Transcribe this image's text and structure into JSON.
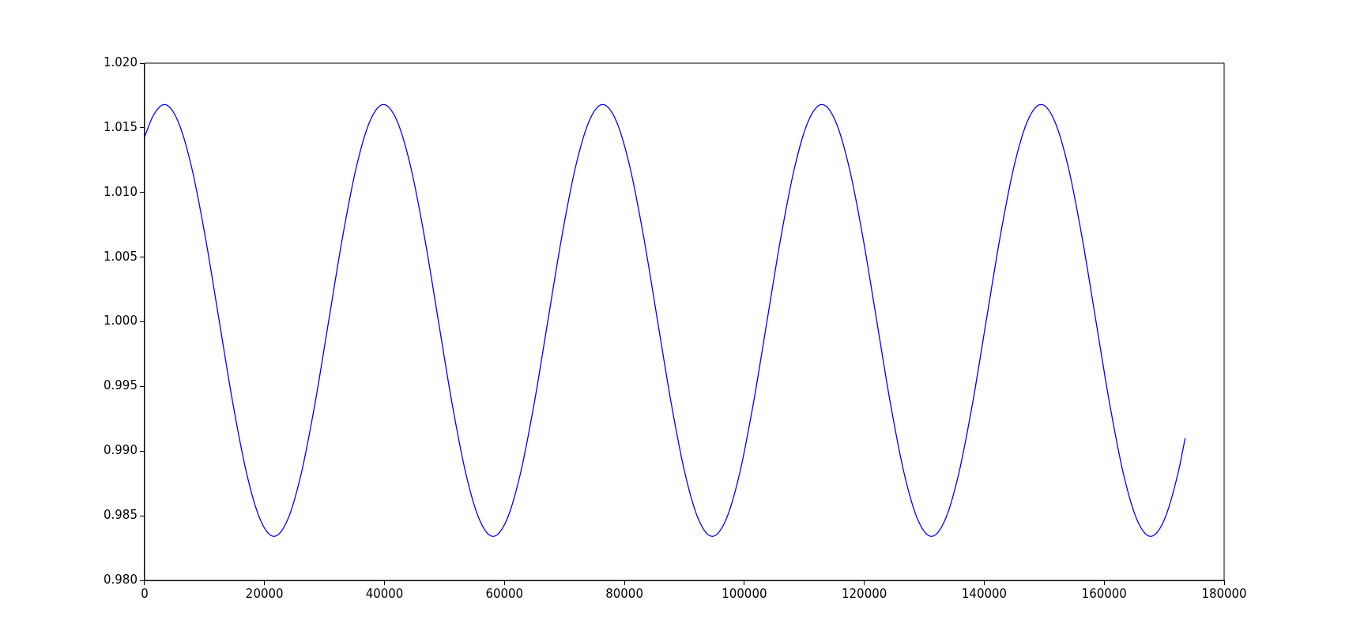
{
  "chart_data": {
    "type": "line",
    "x": [
      0,
      1500,
      3300,
      5584,
      7868,
      10152,
      12436,
      14720,
      17004,
      19288,
      21572,
      23856,
      26140,
      28424,
      30708,
      32992,
      35276,
      37560,
      39844,
      42128,
      44412,
      46696,
      48980,
      51264,
      53548,
      55832,
      58116,
      60400,
      62684,
      64968,
      67252,
      69536,
      71820,
      74104,
      76388,
      78672,
      80956,
      83240,
      85524,
      87808,
      90092,
      92376,
      94660,
      96944,
      99228,
      101512,
      103796,
      106080,
      108364,
      110648,
      112932,
      115216,
      117500,
      119784,
      122068,
      124352,
      126636,
      128920,
      131204,
      133488,
      135772,
      138056,
      140340,
      142624,
      144908,
      147192,
      149476,
      151760,
      154044,
      156328,
      158612,
      160896,
      163180,
      165464,
      167748,
      170032,
      172316,
      173500
    ],
    "series": [
      {
        "color": "#0000ff",
        "values": [
          1.0143,
          1.016,
          1.0168,
          1.0155,
          1.0119,
          1.0065,
          1.0001,
          0.9937,
          0.9883,
          0.9847,
          0.9834,
          0.9847,
          0.9883,
          0.9937,
          1.0001,
          1.0065,
          1.0119,
          1.0155,
          1.0168,
          1.0155,
          1.0119,
          1.0065,
          1.0001,
          0.9937,
          0.9883,
          0.9847,
          0.9834,
          0.9847,
          0.9883,
          0.9937,
          1.0001,
          1.0065,
          1.0119,
          1.0155,
          1.0168,
          1.0155,
          1.0119,
          1.0065,
          1.0001,
          0.9937,
          0.9883,
          0.9847,
          0.9834,
          0.9847,
          0.9883,
          0.9937,
          1.0001,
          1.0065,
          1.0119,
          1.0155,
          1.0168,
          1.0155,
          1.0119,
          1.0065,
          1.0001,
          0.9937,
          0.9883,
          0.9847,
          0.9834,
          0.9847,
          0.9883,
          0.9937,
          1.0001,
          1.0065,
          1.0119,
          1.0155,
          1.0168,
          1.0155,
          1.0119,
          1.0065,
          1.0001,
          0.9937,
          0.9883,
          0.9847,
          0.9834,
          0.9847,
          0.9883,
          0.991
        ]
      }
    ],
    "xlim": [
      0,
      180000
    ],
    "xticks": [
      0,
      20000,
      40000,
      60000,
      80000,
      100000,
      120000,
      140000,
      160000,
      180000
    ],
    "ylim": [
      0.98,
      1.02
    ],
    "yticks": [
      {
        "value": 0.98,
        "label": "0.980"
      },
      {
        "value": 0.985,
        "label": "0.985"
      },
      {
        "value": 0.99,
        "label": "0.990"
      },
      {
        "value": 0.995,
        "label": "0.995"
      },
      {
        "value": 1.0,
        "label": "1.000"
      },
      {
        "value": 1.005,
        "label": "1.005"
      },
      {
        "value": 1.01,
        "label": "1.010"
      },
      {
        "value": 1.015,
        "label": "1.015"
      },
      {
        "value": 1.02,
        "label": "1.020"
      }
    ],
    "grid": false,
    "legend": false,
    "marker": "none",
    "line_style": "solid"
  }
}
